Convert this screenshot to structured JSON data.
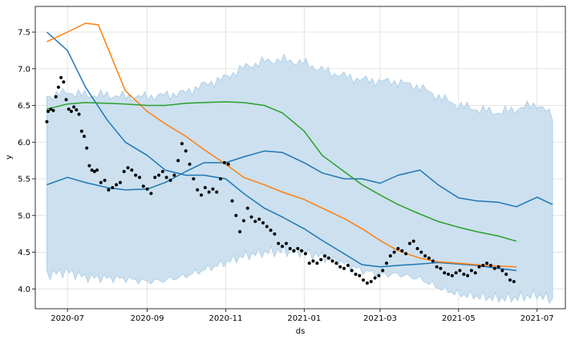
{
  "chart_data": {
    "type": "line",
    "title": "",
    "xlabel": "ds",
    "ylabel": "y",
    "x_range": [
      "2020-06-06",
      "2021-07-23"
    ],
    "ylim": [
      3.73,
      7.85
    ],
    "grid": true,
    "legend": "none",
    "x_ticks": [
      {
        "date": "2020-07-01",
        "label": "2020-07"
      },
      {
        "date": "2020-09-01",
        "label": "2020-09"
      },
      {
        "date": "2020-11-01",
        "label": "2020-11"
      },
      {
        "date": "2021-01-01",
        "label": "2021-01"
      },
      {
        "date": "2021-03-01",
        "label": "2021-03"
      },
      {
        "date": "2021-05-01",
        "label": "2021-05"
      },
      {
        "date": "2021-07-01",
        "label": "2021-07"
      }
    ],
    "y_ticks": [
      {
        "value": 4.0,
        "label": "4.0"
      },
      {
        "value": 4.5,
        "label": "4.5"
      },
      {
        "value": 5.0,
        "label": "5.0"
      },
      {
        "value": 5.5,
        "label": "5.5"
      },
      {
        "value": 6.0,
        "label": "6.0"
      },
      {
        "value": 6.5,
        "label": "6.5"
      },
      {
        "value": 7.0,
        "label": "7.0"
      },
      {
        "value": 7.5,
        "label": "7.5"
      }
    ],
    "band": {
      "color": "#cce0ef",
      "edge_color": "#a9cbe4",
      "x": [
        "2020-06-15",
        "2020-07-01",
        "2020-07-15",
        "2020-08-01",
        "2020-08-15",
        "2020-09-01",
        "2020-09-15",
        "2020-10-01",
        "2020-10-15",
        "2020-11-01",
        "2020-11-15",
        "2020-12-01",
        "2020-12-15",
        "2021-01-01",
        "2021-01-15",
        "2021-02-01",
        "2021-02-15",
        "2021-03-01",
        "2021-03-15",
        "2021-04-01",
        "2021-04-15",
        "2021-05-01",
        "2021-05-15",
        "2021-06-01",
        "2021-06-15",
        "2021-07-01",
        "2021-07-13"
      ],
      "upper": [
        6.62,
        6.68,
        6.64,
        6.64,
        6.62,
        6.62,
        6.64,
        6.68,
        6.78,
        6.88,
        7.02,
        7.1,
        7.12,
        7.08,
        6.98,
        6.9,
        6.85,
        6.83,
        6.82,
        6.75,
        6.62,
        6.5,
        6.45,
        6.4,
        6.45,
        6.52,
        6.35
      ],
      "lower": [
        4.2,
        4.24,
        4.16,
        4.15,
        4.14,
        4.1,
        4.12,
        4.18,
        4.26,
        4.36,
        4.45,
        4.5,
        4.52,
        4.5,
        4.44,
        4.35,
        4.25,
        4.2,
        4.2,
        4.14,
        4.02,
        3.93,
        3.9,
        3.87,
        3.88,
        3.92,
        3.85
      ]
    },
    "series": [
      {
        "color": "#1f77b4",
        "x": [
          "2020-06-15",
          "2020-07-01",
          "2020-07-15",
          "2020-08-01",
          "2020-08-15",
          "2020-09-01",
          "2020-09-15",
          "2020-10-01",
          "2020-10-15",
          "2020-11-01",
          "2020-11-15",
          "2020-12-01",
          "2020-12-15",
          "2021-01-01",
          "2021-01-15",
          "2021-02-01",
          "2021-02-15",
          "2021-03-01",
          "2021-03-15",
          "2021-04-01",
          "2021-04-15",
          "2021-05-01",
          "2021-05-15",
          "2021-06-01",
          "2021-06-15",
          "2021-07-01",
          "2021-07-13"
        ],
        "values": [
          5.42,
          5.52,
          5.45,
          5.38,
          5.35,
          5.36,
          5.45,
          5.6,
          5.72,
          5.72,
          5.8,
          5.88,
          5.86,
          5.72,
          5.58,
          5.5,
          5.5,
          5.44,
          5.55,
          5.62,
          5.42,
          5.24,
          5.2,
          5.18,
          5.12,
          5.25,
          5.15
        ]
      },
      {
        "color": "#1f77b4",
        "x": [
          "2020-06-15",
          "2020-07-01",
          "2020-07-15",
          "2020-08-01",
          "2020-08-15",
          "2020-09-01",
          "2020-09-15",
          "2020-10-01",
          "2020-10-15",
          "2020-11-01",
          "2020-11-15",
          "2020-12-01",
          "2020-12-15",
          "2021-01-01",
          "2021-01-15",
          "2021-02-01",
          "2021-02-15",
          "2021-03-01",
          "2021-03-15",
          "2021-04-01",
          "2021-04-15",
          "2021-05-01",
          "2021-05-15",
          "2021-06-01",
          "2021-06-15"
        ],
        "values": [
          7.5,
          7.25,
          6.75,
          6.3,
          6.0,
          5.82,
          5.62,
          5.55,
          5.55,
          5.5,
          5.3,
          5.1,
          4.98,
          4.82,
          4.66,
          4.48,
          4.33,
          4.3,
          4.32,
          4.34,
          4.36,
          4.34,
          4.32,
          4.28,
          4.25
        ]
      },
      {
        "color": "#ff7f0e",
        "x": [
          "2020-06-15",
          "2020-07-01",
          "2020-07-15",
          "2020-07-25",
          "2020-08-01",
          "2020-08-15",
          "2020-09-01",
          "2020-09-15",
          "2020-10-01",
          "2020-10-15",
          "2020-11-01",
          "2020-11-15",
          "2020-12-01",
          "2020-12-15",
          "2021-01-01",
          "2021-01-15",
          "2021-02-01",
          "2021-02-15",
          "2021-03-01",
          "2021-03-15",
          "2021-04-01",
          "2021-04-15",
          "2021-05-01",
          "2021-05-15",
          "2021-06-01",
          "2021-06-15"
        ],
        "values": [
          7.37,
          7.5,
          7.62,
          7.6,
          7.3,
          6.7,
          6.42,
          6.25,
          6.08,
          5.9,
          5.7,
          5.52,
          5.42,
          5.32,
          5.22,
          5.1,
          4.96,
          4.82,
          4.66,
          4.52,
          4.42,
          4.37,
          4.35,
          4.33,
          4.31,
          4.3
        ]
      },
      {
        "color": "#2ca02c",
        "x": [
          "2020-06-15",
          "2020-07-01",
          "2020-07-15",
          "2020-08-01",
          "2020-08-15",
          "2020-09-01",
          "2020-09-15",
          "2020-10-01",
          "2020-10-15",
          "2020-11-01",
          "2020-11-15",
          "2020-12-01",
          "2020-12-15",
          "2021-01-01",
          "2021-01-15",
          "2021-02-01",
          "2021-02-15",
          "2021-03-01",
          "2021-03-15",
          "2021-04-01",
          "2021-04-15",
          "2021-05-01",
          "2021-05-15",
          "2021-06-01",
          "2021-06-15"
        ],
        "values": [
          6.45,
          6.52,
          6.54,
          6.53,
          6.52,
          6.5,
          6.5,
          6.53,
          6.54,
          6.55,
          6.54,
          6.5,
          6.4,
          6.15,
          5.82,
          5.6,
          5.42,
          5.28,
          5.15,
          5.02,
          4.92,
          4.84,
          4.78,
          4.72,
          4.65
        ]
      }
    ],
    "points": {
      "color": "#000000",
      "x": [
        "2020-06-15",
        "2020-06-16",
        "2020-06-18",
        "2020-06-20",
        "2020-06-22",
        "2020-06-24",
        "2020-06-26",
        "2020-06-28",
        "2020-06-30",
        "2020-07-02",
        "2020-07-04",
        "2020-07-06",
        "2020-07-08",
        "2020-07-10",
        "2020-07-12",
        "2020-07-14",
        "2020-07-16",
        "2020-07-18",
        "2020-07-20",
        "2020-07-22",
        "2020-07-24",
        "2020-07-27",
        "2020-07-30",
        "2020-08-02",
        "2020-08-05",
        "2020-08-08",
        "2020-08-11",
        "2020-08-14",
        "2020-08-17",
        "2020-08-20",
        "2020-08-23",
        "2020-08-26",
        "2020-08-29",
        "2020-09-01",
        "2020-09-04",
        "2020-09-07",
        "2020-09-10",
        "2020-09-13",
        "2020-09-16",
        "2020-09-19",
        "2020-09-22",
        "2020-09-25",
        "2020-09-28",
        "2020-10-01",
        "2020-10-04",
        "2020-10-07",
        "2020-10-10",
        "2020-10-13",
        "2020-10-16",
        "2020-10-19",
        "2020-10-22",
        "2020-10-25",
        "2020-10-28",
        "2020-10-31",
        "2020-11-03",
        "2020-11-06",
        "2020-11-09",
        "2020-11-12",
        "2020-11-15",
        "2020-11-18",
        "2020-11-21",
        "2020-11-24",
        "2020-11-27",
        "2020-11-30",
        "2020-12-03",
        "2020-12-06",
        "2020-12-09",
        "2020-12-12",
        "2020-12-15",
        "2020-12-18",
        "2020-12-21",
        "2020-12-24",
        "2020-12-27",
        "2020-12-30",
        "2021-01-02",
        "2021-01-05",
        "2021-01-08",
        "2021-01-11",
        "2021-01-14",
        "2021-01-17",
        "2021-01-20",
        "2021-01-23",
        "2021-01-26",
        "2021-01-29",
        "2021-02-01",
        "2021-02-04",
        "2021-02-07",
        "2021-02-10",
        "2021-02-13",
        "2021-02-16",
        "2021-02-19",
        "2021-02-22",
        "2021-02-25",
        "2021-02-28",
        "2021-03-03",
        "2021-03-06",
        "2021-03-09",
        "2021-03-12",
        "2021-03-15",
        "2021-03-18",
        "2021-03-21",
        "2021-03-24",
        "2021-03-27",
        "2021-03-30",
        "2021-04-02",
        "2021-04-05",
        "2021-04-08",
        "2021-04-11",
        "2021-04-14",
        "2021-04-17",
        "2021-04-20",
        "2021-04-23",
        "2021-04-26",
        "2021-04-29",
        "2021-05-02",
        "2021-05-05",
        "2021-05-08",
        "2021-05-11",
        "2021-05-14",
        "2021-05-17",
        "2021-05-20",
        "2021-05-23",
        "2021-05-26",
        "2021-05-29",
        "2021-06-01",
        "2021-06-04",
        "2021-06-07",
        "2021-06-10",
        "2021-06-13"
      ],
      "y": [
        6.28,
        6.42,
        6.45,
        6.43,
        6.62,
        6.75,
        6.88,
        6.82,
        6.58,
        6.45,
        6.42,
        6.48,
        6.44,
        6.38,
        6.15,
        6.08,
        5.92,
        5.68,
        5.62,
        5.6,
        5.62,
        5.45,
        5.48,
        5.35,
        5.38,
        5.42,
        5.45,
        5.6,
        5.65,
        5.62,
        5.55,
        5.52,
        5.4,
        5.36,
        5.3,
        5.52,
        5.55,
        5.6,
        5.52,
        5.48,
        5.55,
        5.75,
        5.98,
        5.88,
        5.7,
        5.5,
        5.35,
        5.28,
        5.38,
        5.32,
        5.36,
        5.32,
        5.5,
        5.72,
        5.7,
        5.2,
        5.0,
        4.78,
        4.93,
        5.1,
        4.98,
        4.92,
        4.95,
        4.9,
        4.85,
        4.8,
        4.75,
        4.62,
        4.58,
        4.62,
        4.55,
        4.52,
        4.55,
        4.52,
        4.48,
        4.35,
        4.38,
        4.35,
        4.4,
        4.45,
        4.42,
        4.38,
        4.35,
        4.3,
        4.28,
        4.32,
        4.25,
        4.2,
        4.18,
        4.12,
        4.08,
        4.1,
        4.15,
        4.18,
        4.25,
        4.35,
        4.45,
        4.5,
        4.55,
        4.52,
        4.48,
        4.62,
        4.65,
        4.55,
        4.5,
        4.45,
        4.42,
        4.38,
        4.3,
        4.28,
        4.22,
        4.2,
        4.18,
        4.22,
        4.25,
        4.2,
        4.18,
        4.25,
        4.22,
        4.3,
        4.32,
        4.35,
        4.32,
        4.28,
        4.3,
        4.25,
        4.2,
        4.12,
        4.1
      ]
    }
  }
}
